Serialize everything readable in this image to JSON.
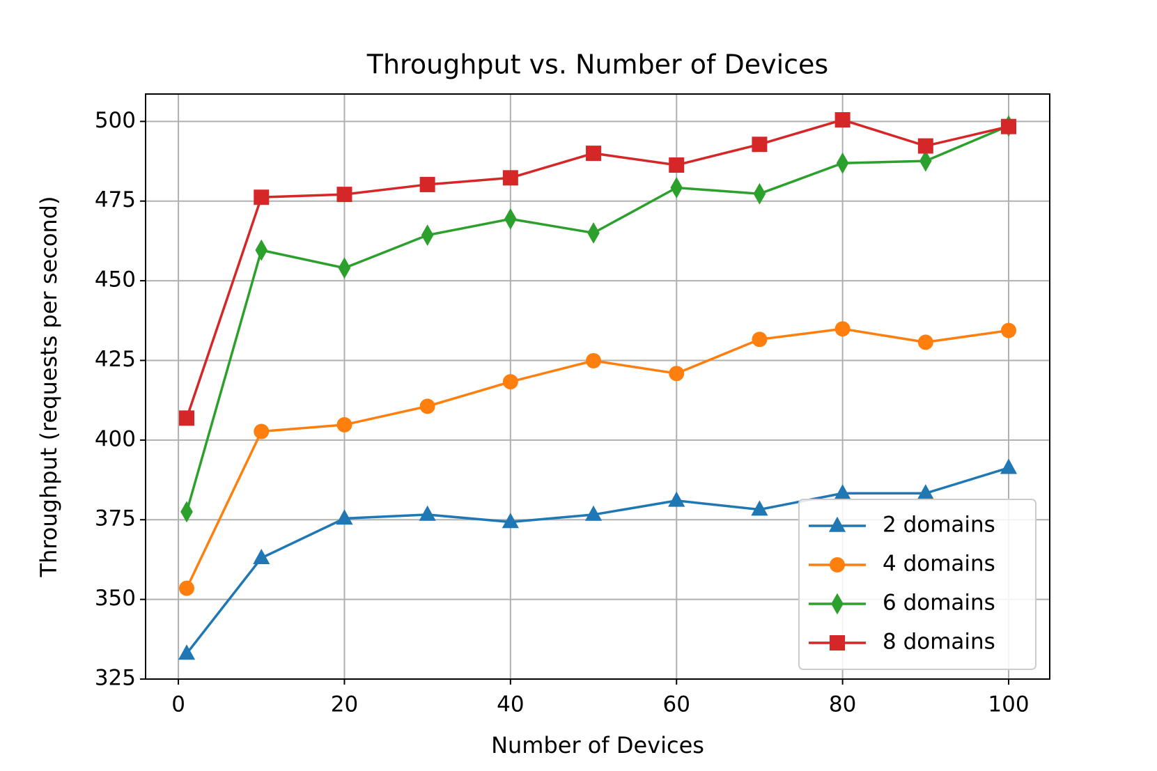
{
  "chart_data": {
    "type": "line",
    "title": "Throughput vs. Number of Devices",
    "x_label": "Number of Devices",
    "y_label": "Throughput (requests per second)",
    "x": [
      1,
      10,
      20,
      30,
      40,
      50,
      60,
      70,
      80,
      90,
      100
    ],
    "series": [
      {
        "name": "2 domains",
        "color": "#1f77b4",
        "marker": "triangle",
        "values": [
          333,
          363,
          375.4,
          376.6,
          374.3,
          376.6,
          381,
          378.2,
          383.3,
          383.3,
          391.3
        ]
      },
      {
        "name": "4 domains",
        "color": "#ff7f0e",
        "marker": "circle",
        "values": [
          353.5,
          402.7,
          404.8,
          410.6,
          418.3,
          424.9,
          420.9,
          431.6,
          434.9,
          430.7,
          434.4
        ]
      },
      {
        "name": "6 domains",
        "color": "#2ca02c",
        "marker": "diamond",
        "values": [
          377.5,
          459.6,
          454,
          464.3,
          469.4,
          465,
          479.2,
          477.3,
          486.9,
          487.6,
          498.6
        ]
      },
      {
        "name": "8 domains",
        "color": "#d62728",
        "marker": "square",
        "values": [
          406.9,
          476.2,
          477.1,
          480.2,
          482.3,
          490,
          486.3,
          492.8,
          500.5,
          492.3,
          498.4
        ]
      }
    ],
    "xlim": [
      -3.95,
      104.95
    ],
    "ylim": [
      325,
      508.6
    ],
    "xticks": [
      0,
      20,
      40,
      60,
      80,
      100
    ],
    "yticks": [
      325,
      350,
      375,
      400,
      425,
      450,
      475,
      500
    ],
    "grid": true,
    "legend_position": "lower right"
  }
}
